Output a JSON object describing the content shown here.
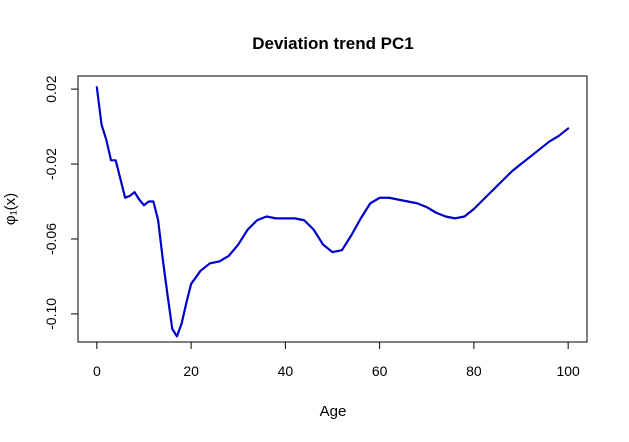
{
  "chart_data": {
    "type": "line",
    "title": "Deviation trend PC1",
    "xlabel": "Age",
    "ylabel": "φ₁(x)",
    "xlim": [
      -4,
      104
    ],
    "ylim": [
      -0.115,
      0.027
    ],
    "x_ticks": [
      0,
      20,
      40,
      60,
      80,
      100
    ],
    "y_ticks": [
      0.02,
      -0.02,
      -0.06,
      -0.1
    ],
    "x_tick_labels": [
      "0",
      "20",
      "40",
      "60",
      "80",
      "100"
    ],
    "y_tick_labels": [
      "0.02",
      "-0.02",
      "-0.06",
      "-0.10"
    ],
    "grid": false,
    "series": [
      {
        "color": "#0000cc",
        "x": [
          0,
          1,
          2,
          3,
          4,
          5,
          6,
          7,
          8,
          9,
          10,
          11,
          12,
          13,
          14,
          15,
          16,
          17,
          18,
          19,
          20,
          22,
          24,
          26,
          28,
          30,
          32,
          34,
          36,
          38,
          40,
          42,
          44,
          46,
          48,
          50,
          52,
          54,
          56,
          58,
          60,
          62,
          64,
          66,
          68,
          70,
          72,
          74,
          76,
          78,
          80,
          82,
          84,
          86,
          88,
          90,
          92,
          94,
          96,
          98,
          100
        ],
        "y": [
          0.021,
          0.001,
          -0.007,
          -0.018,
          -0.018,
          -0.028,
          -0.038,
          -0.037,
          -0.035,
          -0.039,
          -0.042,
          -0.04,
          -0.04,
          -0.05,
          -0.071,
          -0.09,
          -0.108,
          -0.112,
          -0.105,
          -0.094,
          -0.084,
          -0.077,
          -0.073,
          -0.072,
          -0.069,
          -0.063,
          -0.055,
          -0.05,
          -0.048,
          -0.049,
          -0.049,
          -0.049,
          -0.05,
          -0.055,
          -0.063,
          -0.067,
          -0.066,
          -0.058,
          -0.049,
          -0.041,
          -0.038,
          -0.038,
          -0.039,
          -0.04,
          -0.041,
          -0.043,
          -0.046,
          -0.048,
          -0.049,
          -0.048,
          -0.044,
          -0.039,
          -0.034,
          -0.029,
          -0.024,
          -0.02,
          -0.016,
          -0.012,
          -0.008,
          -0.005,
          -0.001
        ]
      }
    ]
  }
}
